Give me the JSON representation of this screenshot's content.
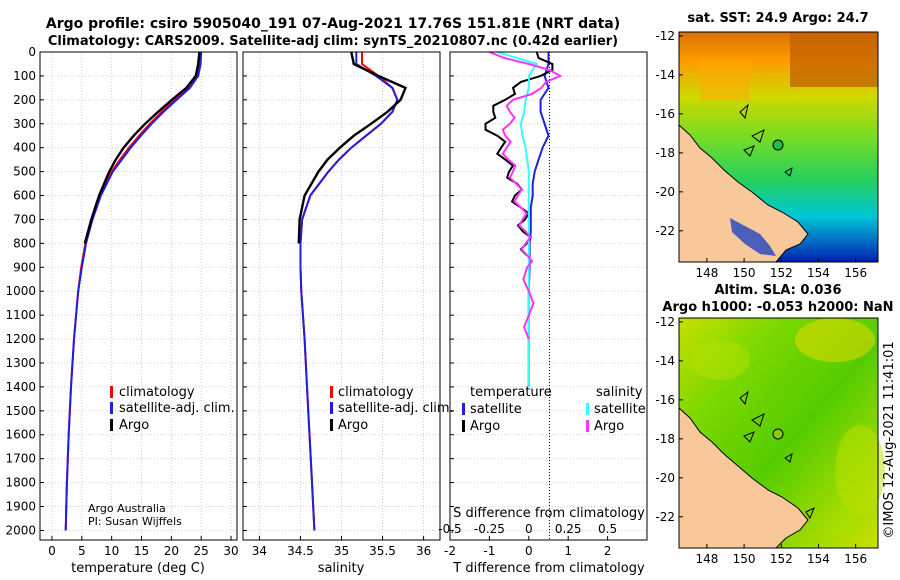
{
  "figure": {
    "title": "Argo profile: csiro 5905040_191 07-Aug-2021 17.76S 151.81E (NRT data)",
    "subtitle": "Climatology: CARS2009. Satellite-adj clim: synTS_20210807.nc (0.42d earlier)",
    "credit_org": "Argo Australia",
    "credit_pi": "PI: Susan Wijffels",
    "timestamp": "©IMOS 12-Aug-2021 11:41:01"
  },
  "colors": {
    "climatology": "#ff0000",
    "satellite": "#1f1fe0",
    "argo": "#000000",
    "s_satellite": "#33ffff",
    "s_argo": "#ff33ff",
    "land": "#f8c89a"
  },
  "chart_data": [
    {
      "type": "line",
      "panel": "temperature",
      "xlabel": "temperature (deg C)",
      "xlim": [
        -2,
        31
      ],
      "xticks": [
        0,
        5,
        10,
        15,
        20,
        25,
        30
      ],
      "ylim": [
        2040,
        0
      ],
      "yticks": [
        0,
        100,
        200,
        300,
        400,
        500,
        600,
        700,
        800,
        900,
        1000,
        1100,
        1200,
        1300,
        1400,
        1500,
        1600,
        1700,
        1800,
        1900,
        2000
      ],
      "depth": [
        0,
        50,
        100,
        150,
        200,
        250,
        300,
        350,
        400,
        450,
        500,
        600,
        700,
        800,
        900,
        1000,
        1200,
        1400,
        1600,
        1800,
        2000
      ],
      "series": [
        {
          "name": "climatology",
          "values": [
            24.8,
            24.6,
            24.2,
            22.8,
            20.6,
            18.4,
            16.4,
            14.6,
            12.9,
            11.4,
            10.0,
            8.1,
            6.7,
            5.6,
            4.9,
            4.4,
            3.7,
            3.2,
            2.8,
            2.5,
            2.3
          ]
        },
        {
          "name": "satellite-adj. clim.",
          "values": [
            25.0,
            24.9,
            24.5,
            23.1,
            20.9,
            18.7,
            16.7,
            14.9,
            13.2,
            11.7,
            10.2,
            8.2,
            6.8,
            5.7,
            5.0,
            4.4,
            3.7,
            3.2,
            2.8,
            2.5,
            2.3
          ]
        },
        {
          "name": "Argo",
          "values": [
            24.7,
            24.5,
            24.1,
            22.5,
            20.1,
            17.8,
            15.6,
            13.7,
            12.0,
            10.7,
            9.6,
            7.9,
            6.6,
            5.5,
            null,
            null,
            null,
            null,
            null,
            null,
            null
          ]
        }
      ],
      "legend": [
        "climatology",
        "satellite-adj. clim.",
        "Argo"
      ]
    },
    {
      "type": "line",
      "panel": "salinity",
      "xlabel": "salinity",
      "xlim": [
        33.8,
        36.2
      ],
      "xticks": [
        34,
        34.5,
        35,
        35.5,
        36
      ],
      "xtick_labels": [
        "34",
        "34.5",
        "35",
        "35.5",
        "36"
      ],
      "ylim": [
        2040,
        0
      ],
      "depth": [
        0,
        50,
        100,
        150,
        200,
        250,
        300,
        350,
        400,
        450,
        500,
        600,
        700,
        800,
        900,
        1000,
        1200,
        1400,
        1600,
        1800,
        2000
      ],
      "series": [
        {
          "name": "climatology",
          "values": [
            35.25,
            35.25,
            35.45,
            35.62,
            35.68,
            35.62,
            35.48,
            35.3,
            35.12,
            34.97,
            34.84,
            34.62,
            34.52,
            34.5,
            34.5,
            34.51,
            34.55,
            34.58,
            34.61,
            34.64,
            34.67
          ]
        },
        {
          "name": "satellite-adj. clim.",
          "values": [
            35.18,
            35.18,
            35.42,
            35.62,
            35.68,
            35.62,
            35.48,
            35.3,
            35.12,
            34.97,
            34.84,
            34.62,
            34.52,
            34.5,
            34.5,
            34.51,
            34.55,
            34.58,
            34.61,
            34.64,
            34.67
          ]
        },
        {
          "name": "Argo",
          "values": [
            35.12,
            35.15,
            35.45,
            35.78,
            35.72,
            35.56,
            35.36,
            35.15,
            34.98,
            34.83,
            34.72,
            34.55,
            34.49,
            34.48,
            null,
            null,
            null,
            null,
            null,
            null,
            null
          ]
        }
      ],
      "legend": [
        "climatology",
        "satellite-adj. clim.",
        "Argo"
      ]
    },
    {
      "type": "line",
      "panel": "differences",
      "xlabel": "T difference from climatology",
      "xlabel_top": "S difference from climatology",
      "xlim": [
        -2,
        3
      ],
      "xticks": [
        -2,
        -1,
        0,
        1,
        2
      ],
      "xtick_labels": [
        "-2",
        "-1",
        "0",
        "1",
        "2"
      ],
      "s_ticks": [
        -0.5,
        -0.25,
        0,
        0.25,
        0.5
      ],
      "s_tick_labels": [
        "-0.5",
        "-0.25",
        "0",
        "0.25",
        "0.5"
      ],
      "ylim": [
        2040,
        0
      ],
      "depth": [
        0,
        50,
        100,
        150,
        200,
        250,
        300,
        350,
        400,
        450,
        500,
        550,
        600,
        650,
        700,
        750,
        800,
        850,
        900,
        1000,
        1100,
        1200,
        1300,
        1400
      ],
      "series": [
        {
          "name": "T satellite",
          "group": "temperature",
          "values": [
            0.5,
            0.5,
            0.4,
            0.5,
            0.3,
            0.3,
            0.4,
            0.5,
            0.35,
            0.25,
            0.15,
            0.1,
            0.1,
            0.05,
            0.05,
            0.05,
            0.02,
            0.02,
            0.02,
            0,
            0,
            0,
            0,
            0
          ]
        },
        {
          "name": "T Argo",
          "group": "temperature",
          "values": [
            0.2,
            0.6,
            0.3,
            -0.4,
            -0.6,
            -0.9,
            -1.1,
            -0.8,
            -0.7,
            -0.6,
            -0.5,
            -0.3,
            -0.35,
            -0.2,
            -0.1,
            -0.15,
            -0.05,
            -0.05,
            null,
            null,
            null,
            null,
            null,
            null
          ]
        },
        {
          "name": "S satellite",
          "group": "salinity",
          "values": [
            -0.2,
            0.05,
            0,
            0,
            -0.02,
            -0.03,
            -0.05,
            -0.04,
            -0.02,
            -0.01,
            0,
            0,
            0,
            0,
            0,
            0,
            0,
            0,
            0,
            0,
            0,
            0,
            0,
            0
          ]
        },
        {
          "name": "S Argo",
          "group": "salinity",
          "values": [
            -0.25,
            0,
            0.2,
            0.08,
            -0.1,
            -0.12,
            -0.12,
            -0.15,
            -0.14,
            -0.13,
            -0.1,
            -0.08,
            -0.07,
            -0.05,
            -0.04,
            -0.02,
            -0.02,
            -0.01,
            -0.01,
            0,
            0,
            0,
            null,
            null
          ]
        }
      ],
      "legend_t_heading": "temperature",
      "legend_s_heading": "salinity",
      "legend_t": [
        "satellite",
        "Argo"
      ],
      "legend_s": [
        "satellite",
        "Argo"
      ]
    },
    {
      "type": "heatmap",
      "panel": "sst_map",
      "title": "sat. SST: 24.9 Argo: 24.7",
      "xlim": [
        146.5,
        157.2
      ],
      "ylim": [
        -23.6,
        -11.8
      ],
      "xticks": [
        148,
        150,
        152,
        154,
        156
      ],
      "yticks": [
        -12,
        -14,
        -16,
        -18,
        -20,
        -22
      ],
      "xtick_labels": [
        "148",
        "150",
        "152",
        "154",
        "156"
      ],
      "ytick_labels": [
        "-12",
        "-14",
        "-16",
        "-18",
        "-20",
        "-22"
      ],
      "float_position": [
        151.81,
        -17.76
      ],
      "colorscale": [
        "#0000aa",
        "#00c0ff",
        "#22dd66",
        "#66e022",
        "#c8e000",
        "#ff9a00",
        "#d06000"
      ]
    },
    {
      "type": "heatmap",
      "panel": "sla_map",
      "title": "Altim. SLA: 0.036",
      "subtitle": "Argo h1000: -0.053 h2000: NaN",
      "xlim": [
        146.5,
        157.2
      ],
      "ylim": [
        -23.6,
        -11.8
      ],
      "xticks": [
        148,
        150,
        152,
        154,
        156
      ],
      "yticks": [
        -12,
        -14,
        -16,
        -18,
        -20,
        -22
      ],
      "xtick_labels": [
        "148",
        "150",
        "152",
        "154",
        "156"
      ],
      "ytick_labels": [
        "-12",
        "-14",
        "-16",
        "-18",
        "-20",
        "-22"
      ],
      "float_position": [
        151.81,
        -17.76
      ],
      "colorscale": [
        "#66cc00",
        "#99e000",
        "#d8e000",
        "#ffd000"
      ]
    }
  ]
}
